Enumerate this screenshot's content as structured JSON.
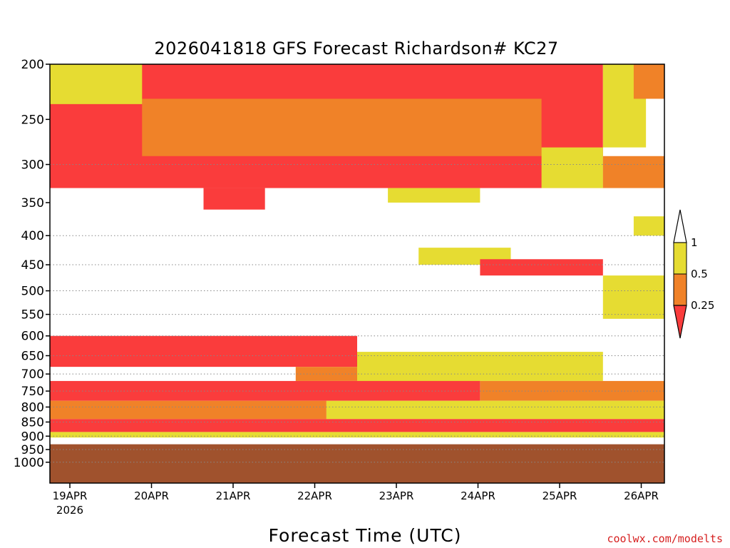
{
  "chart_data": {
    "type": "heatmap",
    "title": "2026041818 GFS Forecast Richardson# KC27",
    "xlabel": "Forecast Time (UTC)",
    "ylabel": "",
    "x_ticks": [
      "19APR",
      "20APR",
      "21APR",
      "22APR",
      "23APR",
      "24APR",
      "25APR",
      "26APR"
    ],
    "x_year_label": "2026",
    "y_axis": "pressure (hPa), inverted",
    "y_ticks": [
      200,
      250,
      300,
      350,
      400,
      450,
      500,
      550,
      600,
      650,
      700,
      750,
      800,
      850,
      900,
      950,
      1000
    ],
    "grid": "dotted horizontal lines at 300 hPa and every 50 hPa from 400 to 1000",
    "legend": {
      "position": "right",
      "labels": [
        "1",
        "0.5",
        "0.25"
      ],
      "bins": [
        {
          "range": "< 0.25",
          "color": "#fa3c3c"
        },
        {
          "range": "0.25-0.5",
          "color": "#f08228"
        },
        {
          "range": "0.5-1",
          "color": "#e6dc32"
        },
        {
          "range": "> 1",
          "color": "#ffffff"
        }
      ]
    },
    "colors": {
      "lt_025": "#fa3c3c",
      "r025_05": "#f08228",
      "r05_1": "#e6dc32",
      "ground": "#a0522d"
    },
    "ground_level_hpa": 930,
    "regions": [
      {
        "t0": 0.0,
        "t1": 0.9,
        "p0": 200,
        "p1": 330,
        "v": 0.15
      },
      {
        "t0": 0.9,
        "t1": 0.97,
        "p0": 200,
        "p1": 280,
        "v": 0.8
      },
      {
        "t0": 0.15,
        "t1": 0.8,
        "p0": 230,
        "p1": 290,
        "v": 0.35
      },
      {
        "t0": 0.0,
        "t1": 0.15,
        "p0": 200,
        "p1": 235,
        "v": 0.8
      },
      {
        "t0": 0.9,
        "t1": 1.0,
        "p0": 290,
        "p1": 330,
        "v": 0.35
      },
      {
        "t0": 0.95,
        "t1": 1.0,
        "p0": 200,
        "p1": 230,
        "v": 0.35
      },
      {
        "t0": 0.25,
        "t1": 0.35,
        "p0": 330,
        "p1": 360,
        "v": 0.15
      },
      {
        "t0": 0.55,
        "t1": 0.7,
        "p0": 330,
        "p1": 350,
        "v": 0.8
      },
      {
        "t0": 0.8,
        "t1": 0.9,
        "p0": 280,
        "p1": 330,
        "v": 0.8
      },
      {
        "t0": 0.95,
        "t1": 1.0,
        "p0": 370,
        "p1": 400,
        "v": 0.8
      },
      {
        "t0": 0.6,
        "t1": 0.75,
        "p0": 420,
        "p1": 450,
        "v": 0.8
      },
      {
        "t0": 0.7,
        "t1": 0.9,
        "p0": 440,
        "p1": 470,
        "v": 0.15
      },
      {
        "t0": 0.9,
        "t1": 1.0,
        "p0": 470,
        "p1": 560,
        "v": 0.8
      },
      {
        "t0": 0.0,
        "t1": 0.5,
        "p0": 600,
        "p1": 680,
        "v": 0.15
      },
      {
        "t0": 0.4,
        "t1": 0.7,
        "p0": 680,
        "p1": 720,
        "v": 0.35
      },
      {
        "t0": 0.5,
        "t1": 0.9,
        "p0": 640,
        "p1": 720,
        "v": 0.8
      },
      {
        "t0": 0.0,
        "t1": 0.7,
        "p0": 720,
        "p1": 780,
        "v": 0.15
      },
      {
        "t0": 0.7,
        "t1": 1.0,
        "p0": 720,
        "p1": 780,
        "v": 0.35
      },
      {
        "t0": 0.0,
        "t1": 0.45,
        "p0": 780,
        "p1": 840,
        "v": 0.35
      },
      {
        "t0": 0.45,
        "t1": 1.0,
        "p0": 780,
        "p1": 840,
        "v": 0.8
      },
      {
        "t0": 0.0,
        "t1": 1.0,
        "p0": 840,
        "p1": 885,
        "v": 0.15
      },
      {
        "t0": 0.0,
        "t1": 1.0,
        "p0": 885,
        "p1": 905,
        "v": 0.8
      }
    ]
  },
  "credit": "coolwx.com/modelts"
}
